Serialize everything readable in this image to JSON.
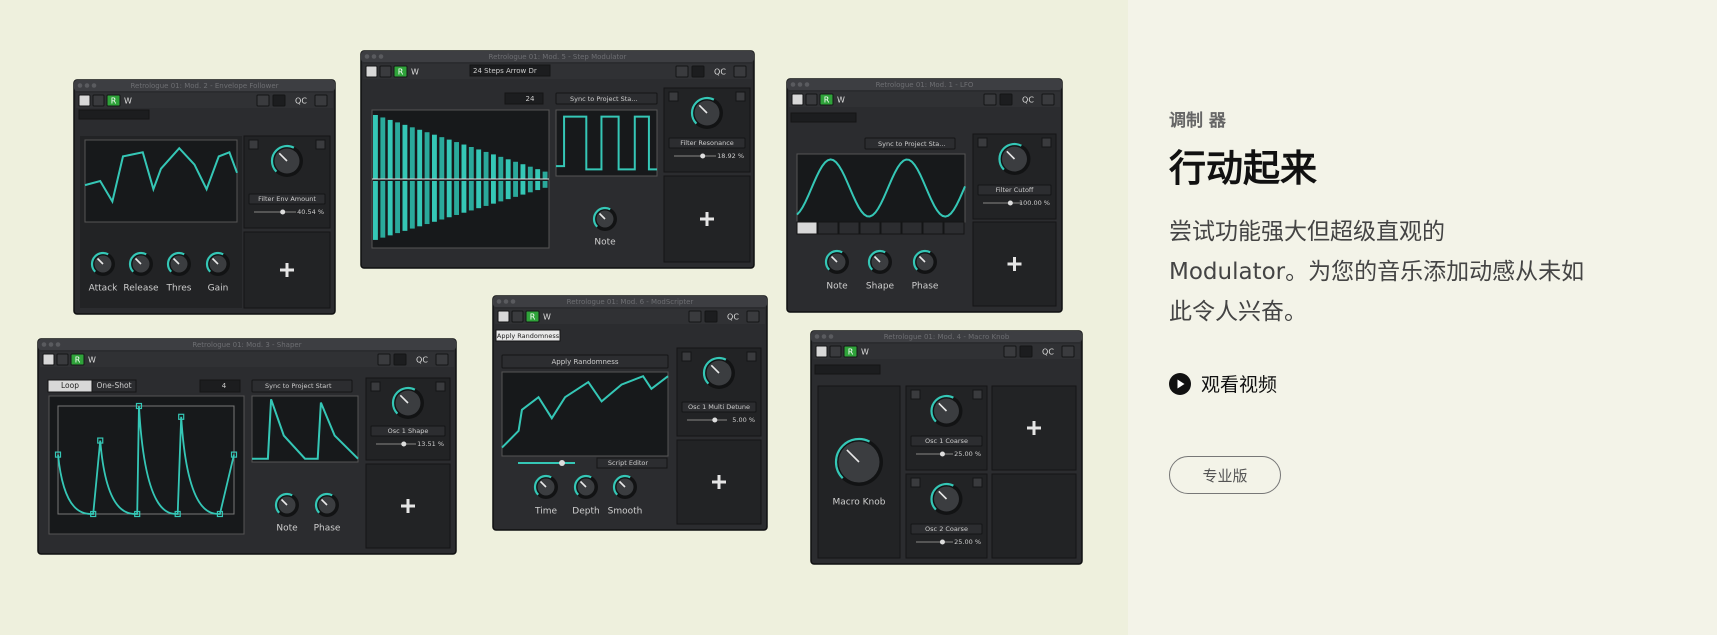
{
  "toolbar": [
    "R",
    "W",
    "QC"
  ],
  "windows": [
    {
      "title": "Retrologue 01: Mod. 2 - Envelope Follower",
      "knobs": [
        "Attack",
        "Release",
        "Thres",
        "Gain"
      ],
      "params": [
        {
          "name": "Filter Env Amount",
          "amount": "40.54 %"
        }
      ]
    },
    {
      "title": "Retrologue 01: Mod. 5 - Step Modulator",
      "knobs": [
        "Note"
      ],
      "params": [
        {
          "name": "Filter Resonance",
          "amount": "18.92 %"
        }
      ],
      "preset": "24 Steps Arrow Dr",
      "steps": "24",
      "sync": "Sync to Project Sta..."
    },
    {
      "title": "Retrologue 01: Mod. 1 - LFO",
      "knobs": [
        "Note",
        "Shape",
        "Phase"
      ],
      "params": [
        {
          "name": "Filter Cutoff",
          "amount": "100.00 %"
        }
      ],
      "sync": "Sync to Project Sta..."
    },
    {
      "title": "Retrologue 01: Mod. 3 - Shaper",
      "knobs": [
        "Note",
        "Phase"
      ],
      "params": [
        {
          "name": "Osc 1 Shape",
          "amount": "13.51 %"
        }
      ],
      "loop": "Loop",
      "oneshot": "One-Shot",
      "steps": "4",
      "sync": "Sync to Project Start"
    },
    {
      "title": "Retrologue 01: Mod. 6 - ModScripter",
      "knobs": [
        "Time",
        "Depth",
        "Smooth"
      ],
      "params": [
        {
          "name": "Osc 1 Multi Detune",
          "amount": "5.00 %"
        }
      ],
      "preset": "Apply Randomness",
      "editor": "Script Editor"
    },
    {
      "title": "Retrologue 01: Mod. 4 - Macro Knob",
      "knobs": [
        "Macro Knob"
      ],
      "params": [
        {
          "name": "Osc 1 Coarse",
          "amount": "25.00 %"
        },
        {
          "name": "Osc 2 Coarse",
          "amount": "25.00 %"
        }
      ]
    }
  ],
  "hero": {
    "eyebrow": "调制 器",
    "title": "行动起来",
    "body": [
      "尝试功能强大但超级直观的",
      "Modulator。为您的音乐添加动感从未如",
      "此令人兴奋。"
    ],
    "video": "观看视频",
    "button": "专业版"
  }
}
